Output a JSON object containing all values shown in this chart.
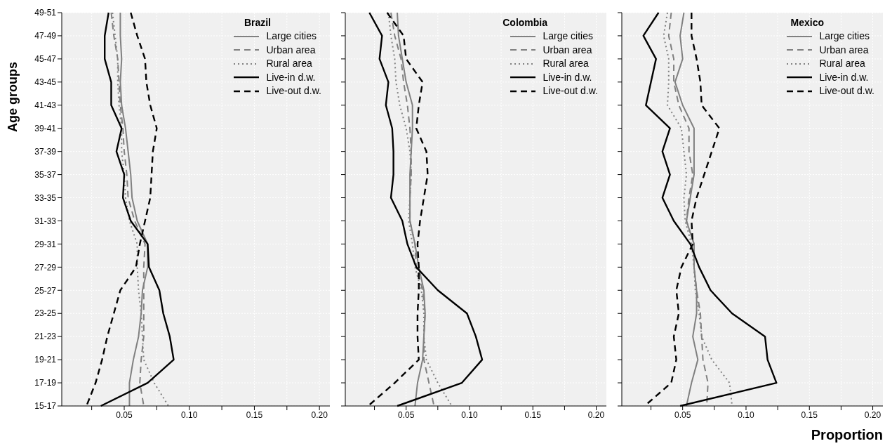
{
  "chart_data": [
    {
      "type": "line",
      "orientation": "horizontal",
      "title": "Brazil",
      "ylabel": "Age groups",
      "categories": [
        "49-51",
        "47-49",
        "45-47",
        "43-45",
        "41-43",
        "39-41",
        "37-39",
        "35-37",
        "33-35",
        "31-33",
        "29-31",
        "27-29",
        "25-27",
        "23-25",
        "21-23",
        "19-21",
        "17-19",
        "15-17"
      ],
      "xlim": [
        0.002,
        0.208
      ],
      "xticks": [
        {
          "value": 0.025,
          "label": null
        },
        {
          "value": 0.05,
          "label": "0.05"
        },
        {
          "value": 0.075,
          "label": null
        },
        {
          "value": 0.1,
          "label": "0.10"
        },
        {
          "value": 0.125,
          "label": null
        },
        {
          "value": 0.15,
          "label": "0.15"
        },
        {
          "value": 0.175,
          "label": null
        },
        {
          "value": 0.2,
          "label": "0.20"
        }
      ],
      "grid": true,
      "legend": "top right",
      "series": [
        {
          "name": "Large cities",
          "color": "#808080",
          "line_style": "solid",
          "values": [
            0.047,
            0.047,
            0.048,
            0.047,
            0.048,
            0.051,
            0.053,
            0.055,
            0.056,
            0.06,
            0.068,
            0.068,
            0.064,
            0.063,
            0.061,
            0.057,
            0.054,
            0.054
          ]
        },
        {
          "name": "Urban area",
          "color": "#808080",
          "line_style": "dashed",
          "values": [
            0.04,
            0.042,
            0.045,
            0.046,
            0.047,
            0.049,
            0.05,
            0.052,
            0.053,
            0.058,
            0.066,
            0.065,
            0.065,
            0.065,
            0.065,
            0.063,
            0.062,
            0.065
          ]
        },
        {
          "name": "Rural area",
          "color": "#808080",
          "line_style": "dotted",
          "values": [
            0.041,
            0.043,
            0.045,
            0.045,
            0.046,
            0.048,
            0.048,
            0.05,
            0.051,
            0.054,
            0.06,
            0.06,
            0.061,
            0.063,
            0.064,
            0.065,
            0.073,
            0.084
          ]
        },
        {
          "name": "Live-in d.w.",
          "color": "#000000",
          "line_style": "solid",
          "values": [
            0.038,
            0.035,
            0.035,
            0.04,
            0.04,
            0.048,
            0.044,
            0.05,
            0.049,
            0.055,
            0.068,
            0.069,
            0.077,
            0.08,
            0.085,
            0.088,
            0.068,
            0.032
          ]
        },
        {
          "name": "Live-out d.w.",
          "color": "#000000",
          "line_style": "dashed",
          "values": [
            0.055,
            0.06,
            0.066,
            0.067,
            0.07,
            0.075,
            0.072,
            0.071,
            0.07,
            0.066,
            0.062,
            0.059,
            0.047,
            0.042,
            0.037,
            0.033,
            0.028,
            0.021
          ]
        }
      ]
    },
    {
      "type": "line",
      "orientation": "horizontal",
      "title": "Colombia",
      "categories": [
        null,
        null,
        null,
        null,
        null,
        null,
        null,
        null,
        null,
        null,
        null,
        null,
        null,
        null,
        null,
        null,
        null,
        null
      ],
      "xlim": [
        0.002,
        0.208
      ],
      "xticks": [
        {
          "value": 0.025,
          "label": null
        },
        {
          "value": 0.05,
          "label": "0.05"
        },
        {
          "value": 0.075,
          "label": null
        },
        {
          "value": 0.1,
          "label": "0.10"
        },
        {
          "value": 0.125,
          "label": null
        },
        {
          "value": 0.15,
          "label": "0.15"
        },
        {
          "value": 0.175,
          "label": null
        },
        {
          "value": 0.2,
          "label": "0.20"
        }
      ],
      "grid": true,
      "legend": "top right",
      "series": [
        {
          "name": "Large cities",
          "color": "#808080",
          "line_style": "solid",
          "values": [
            0.043,
            0.044,
            0.047,
            0.05,
            0.055,
            0.055,
            0.054,
            0.053,
            0.053,
            0.053,
            0.057,
            0.06,
            0.064,
            0.065,
            0.064,
            0.063,
            0.059,
            0.057
          ]
        },
        {
          "name": "Urban area",
          "color": "#808080",
          "line_style": "dashed",
          "values": [
            0.038,
            0.041,
            0.046,
            0.048,
            0.051,
            0.053,
            0.054,
            0.054,
            0.053,
            0.053,
            0.057,
            0.058,
            0.063,
            0.065,
            0.064,
            0.064,
            0.068,
            0.072
          ]
        },
        {
          "name": "Rural area",
          "color": "#808080",
          "line_style": "dotted",
          "values": [
            0.036,
            0.038,
            0.041,
            0.042,
            0.045,
            0.05,
            0.053,
            0.054,
            0.053,
            0.052,
            0.055,
            0.057,
            0.062,
            0.064,
            0.064,
            0.066,
            0.075,
            0.086
          ]
        },
        {
          "name": "Live-in d.w.",
          "color": "#000000",
          "line_style": "solid",
          "values": [
            0.021,
            0.031,
            0.029,
            0.036,
            0.034,
            0.039,
            0.04,
            0.04,
            0.038,
            0.047,
            0.051,
            0.058,
            0.075,
            0.098,
            0.105,
            0.11,
            0.094,
            0.043
          ]
        },
        {
          "name": "Live-out d.w.",
          "color": "#000000",
          "line_style": "dashed",
          "values": [
            0.035,
            0.048,
            0.05,
            0.063,
            0.06,
            0.058,
            0.066,
            0.067,
            0.064,
            0.061,
            0.059,
            0.06,
            0.06,
            0.059,
            0.059,
            0.06,
            0.041,
            0.02
          ]
        }
      ]
    },
    {
      "type": "line",
      "orientation": "horizontal",
      "title": "Mexico",
      "xlabel": "Proportion",
      "categories": [
        null,
        null,
        null,
        null,
        null,
        null,
        null,
        null,
        null,
        null,
        null,
        null,
        null,
        null,
        null,
        null,
        null,
        null
      ],
      "xlim": [
        0.002,
        0.208
      ],
      "xticks": [
        {
          "value": 0.025,
          "label": null
        },
        {
          "value": 0.05,
          "label": "0.05"
        },
        {
          "value": 0.075,
          "label": null
        },
        {
          "value": 0.1,
          "label": "0.10"
        },
        {
          "value": 0.125,
          "label": null
        },
        {
          "value": 0.15,
          "label": "0.15"
        },
        {
          "value": 0.175,
          "label": null
        },
        {
          "value": 0.2,
          "label": "0.20"
        }
      ],
      "grid": true,
      "legend": "top right",
      "series": [
        {
          "name": "Large cities",
          "color": "#808080",
          "line_style": "solid",
          "values": [
            0.051,
            0.048,
            0.05,
            0.044,
            0.05,
            0.059,
            0.059,
            0.059,
            0.056,
            0.053,
            0.059,
            0.059,
            0.061,
            0.061,
            0.058,
            0.062,
            0.057,
            0.053
          ]
        },
        {
          "name": "Urban area",
          "color": "#808080",
          "line_style": "dashed",
          "values": [
            0.041,
            0.039,
            0.043,
            0.043,
            0.047,
            0.055,
            0.055,
            0.058,
            0.055,
            0.053,
            0.059,
            0.059,
            0.061,
            0.064,
            0.065,
            0.066,
            0.07,
            0.069
          ]
        },
        {
          "name": "Rural area",
          "color": "#808080",
          "line_style": "dotted",
          "values": [
            0.038,
            0.035,
            0.039,
            0.039,
            0.038,
            0.049,
            0.051,
            0.053,
            0.051,
            0.052,
            0.057,
            0.059,
            0.06,
            0.063,
            0.065,
            0.073,
            0.087,
            0.089
          ]
        },
        {
          "name": "Live-in d.w.",
          "color": "#000000",
          "line_style": "solid",
          "values": [
            0.031,
            0.019,
            0.029,
            0.025,
            0.021,
            0.04,
            0.034,
            0.04,
            0.034,
            0.043,
            0.056,
            0.063,
            0.072,
            0.089,
            0.115,
            0.117,
            0.124,
            0.048
          ]
        },
        {
          "name": "Live-out d.w.",
          "color": "#000000",
          "line_style": "dashed",
          "values": [
            0.057,
            0.057,
            0.061,
            0.064,
            0.065,
            0.079,
            0.073,
            0.067,
            0.061,
            0.057,
            0.058,
            0.049,
            0.045,
            0.047,
            0.043,
            0.045,
            0.041,
            0.02
          ]
        }
      ]
    }
  ]
}
